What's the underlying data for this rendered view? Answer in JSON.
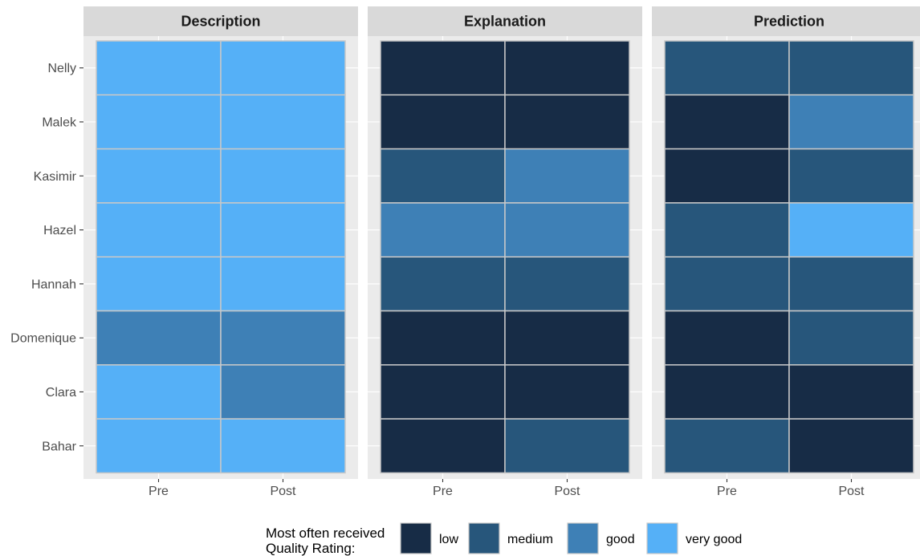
{
  "chart_data": {
    "type": "heatmap",
    "title": "",
    "xlabel": "",
    "ylabel": "",
    "panels": [
      "Description",
      "Explanation",
      "Prediction"
    ],
    "x": [
      "Pre",
      "Post"
    ],
    "y": [
      "Nelly",
      "Malek",
      "Kasimir",
      "Hazel",
      "Hannah",
      "Domenique",
      "Clara",
      "Bahar"
    ],
    "values": {
      "Description": {
        "Pre": [
          "very good",
          "very good",
          "very good",
          "very good",
          "very good",
          "good",
          "very good",
          "very good"
        ],
        "Post": [
          "very good",
          "very good",
          "very good",
          "very good",
          "very good",
          "good",
          "good",
          "very good"
        ]
      },
      "Explanation": {
        "Pre": [
          "low",
          "low",
          "medium",
          "good",
          "medium",
          "low",
          "low",
          "low"
        ],
        "Post": [
          "low",
          "low",
          "good",
          "good",
          "medium",
          "low",
          "low",
          "medium"
        ]
      },
      "Prediction": {
        "Pre": [
          "medium",
          "low",
          "low",
          "medium",
          "medium",
          "low",
          "low",
          "medium"
        ],
        "Post": [
          "medium",
          "good",
          "medium",
          "very good",
          "medium",
          "medium",
          "low",
          "low"
        ]
      }
    },
    "levels": [
      "low",
      "medium",
      "good",
      "very good"
    ],
    "colors": {
      "low": "#172c46",
      "medium": "#27567b",
      "good": "#3e80b6",
      "very good": "#55b0f7"
    },
    "legend": {
      "title_lines": [
        "Most often received",
        "Quality Rating:"
      ],
      "position": "bottom"
    },
    "grid": true
  }
}
